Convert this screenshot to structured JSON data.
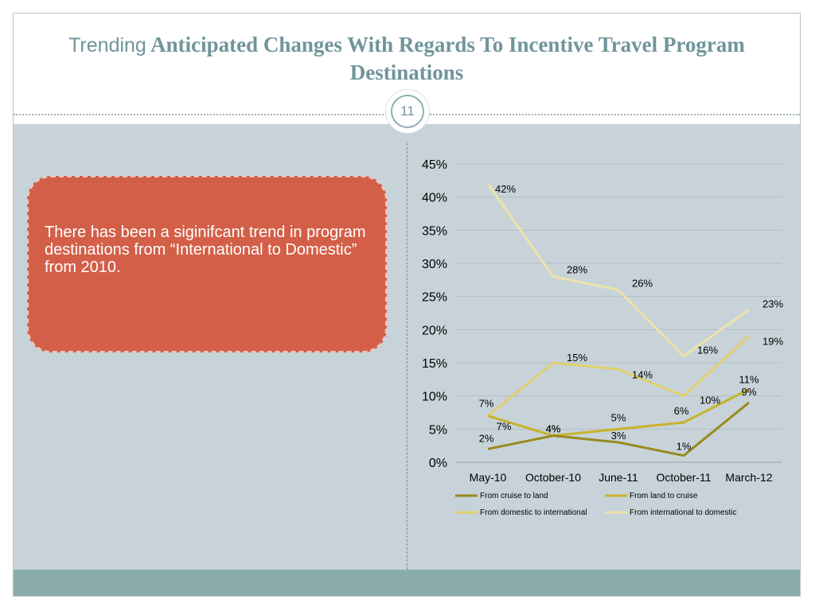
{
  "slide": {
    "title_lead": "Trending",
    "title_rest": " Anticipated Changes With Regards To  Incentive Travel Program Destinations",
    "page_number": "11",
    "callout_text": "There has been a siginifcant trend in program destinations from “International to Domestic” from 2010."
  },
  "colors": {
    "background": "#c7d3d9",
    "footer": "#8bacac",
    "callout": "#d35f48",
    "title": "#6f959a"
  },
  "chart_data": {
    "type": "line",
    "categories": [
      "May-10",
      "October-10",
      "June-11",
      "October-11",
      "March-12"
    ],
    "y_ticks": [
      "0%",
      "5%",
      "10%",
      "15%",
      "20%",
      "25%",
      "30%",
      "35%",
      "40%",
      "45%"
    ],
    "ylim": [
      0,
      45
    ],
    "grid": true,
    "legend_position": "bottom",
    "series": [
      {
        "name": "From cruise to land",
        "color": "#9a8a1c",
        "values": [
          2,
          4,
          3,
          1,
          9
        ],
        "labels": [
          "2%",
          "4%",
          "3%",
          "1%",
          "9%"
        ]
      },
      {
        "name": "From land to cruise",
        "color": "#c9b22a",
        "values": [
          7,
          4,
          5,
          6,
          11
        ],
        "labels": [
          "7%",
          "4%",
          "5%",
          "6%",
          "11%"
        ]
      },
      {
        "name": "From domestic to international",
        "color": "#e2cf6e",
        "values": [
          7,
          15,
          14,
          10,
          19
        ],
        "labels": [
          "7%",
          "15%",
          "14%",
          "10%",
          "19%"
        ]
      },
      {
        "name": "From international to domestic",
        "color": "#ede3a8",
        "values": [
          42,
          28,
          26,
          16,
          23
        ],
        "labels": [
          "42%",
          "28%",
          "26%",
          "16%",
          "23%"
        ]
      }
    ]
  }
}
